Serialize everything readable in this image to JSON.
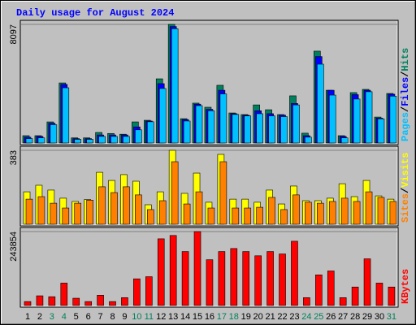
{
  "chart_data": [
    {
      "type": "bar",
      "title": "Daily usage for August 2024",
      "legend_separator": "/",
      "ylim": [
        0,
        8097
      ],
      "yticks": [
        8097
      ],
      "series": [
        {
          "name": "Hits",
          "color": "#00805c",
          "values": [
            500,
            500,
            1440,
            4100,
            350,
            350,
            720,
            650,
            600,
            1440,
            1550,
            4380,
            8097,
            1660,
            2720,
            2440,
            3940,
            2050,
            1940,
            2600,
            2270,
            1940,
            3220,
            670,
            6270,
            3600,
            500,
            3440,
            3660,
            1770,
            3380
          ]
        },
        {
          "name": "Files",
          "color": "#0000ff",
          "values": [
            400,
            450,
            1350,
            4000,
            300,
            300,
            550,
            550,
            550,
            1100,
            1500,
            4050,
            7950,
            1600,
            2650,
            2300,
            3600,
            2000,
            1900,
            2200,
            2000,
            1900,
            2700,
            500,
            5900,
            3600,
            450,
            3300,
            3600,
            1700,
            3330
          ]
        },
        {
          "name": "Pages",
          "color": "#00c0ff",
          "values": [
            300,
            350,
            1250,
            3770,
            250,
            250,
            450,
            450,
            450,
            900,
            1450,
            3720,
            7800,
            1500,
            2550,
            2200,
            3350,
            1950,
            1850,
            2000,
            1850,
            1800,
            2600,
            400,
            5380,
            3270,
            350,
            3000,
            3500,
            1650,
            3200
          ]
        }
      ]
    },
    {
      "type": "bar",
      "legend_separator": "/",
      "ylim": [
        0,
        383
      ],
      "yticks": [
        383
      ],
      "series": [
        {
          "name": "Visits",
          "color": "#ffff00",
          "values": [
            168,
            202,
            177,
            135,
            118,
            128,
            269,
            227,
            257,
            223,
            101,
            168,
            383,
            160,
            265,
            114,
            362,
            130,
            130,
            114,
            177,
            105,
            198,
            122,
            122,
            135,
            210,
            143,
            227,
            147,
            130
          ]
        },
        {
          "name": "Sites",
          "color": "#ff8000",
          "values": [
            130,
            143,
            109,
            84,
            109,
            125,
            194,
            164,
            194,
            152,
            76,
            122,
            324,
            105,
            168,
            84,
            324,
            84,
            84,
            88,
            139,
            76,
            152,
            114,
            109,
            118,
            135,
            118,
            168,
            139,
            118
          ]
        }
      ]
    },
    {
      "type": "bar",
      "ylim": [
        0,
        243854
      ],
      "yticks": [
        243854
      ],
      "categories": [
        "1",
        "2",
        "3",
        "4",
        "5",
        "6",
        "7",
        "8",
        "9",
        "10",
        "11",
        "12",
        "13",
        "14",
        "15",
        "16",
        "17",
        "18",
        "19",
        "20",
        "21",
        "22",
        "23",
        "24",
        "25",
        "26",
        "27",
        "28",
        "29",
        "30",
        "31"
      ],
      "category_colors": [
        "#000000",
        "#000000",
        "#00805c",
        "#00805c",
        "#000000",
        "#000000",
        "#000000",
        "#000000",
        "#000000",
        "#00805c",
        "#00805c",
        "#000000",
        "#000000",
        "#000000",
        "#000000",
        "#000000",
        "#00805c",
        "#00805c",
        "#000000",
        "#000000",
        "#000000",
        "#000000",
        "#000000",
        "#00805c",
        "#00805c",
        "#000000",
        "#000000",
        "#000000",
        "#000000",
        "#000000",
        "#00805c"
      ],
      "series": [
        {
          "name": "KBytes",
          "color": "#ff0000",
          "values": [
            13000,
            32000,
            29000,
            74000,
            24000,
            13000,
            34000,
            13000,
            26000,
            88000,
            95000,
            220000,
            231000,
            178000,
            243854,
            151000,
            178000,
            188000,
            178000,
            164000,
            178000,
            170000,
            212000,
            26000,
            101000,
            114000,
            26000,
            61000,
            154000,
            74000,
            61000
          ]
        }
      ]
    }
  ]
}
